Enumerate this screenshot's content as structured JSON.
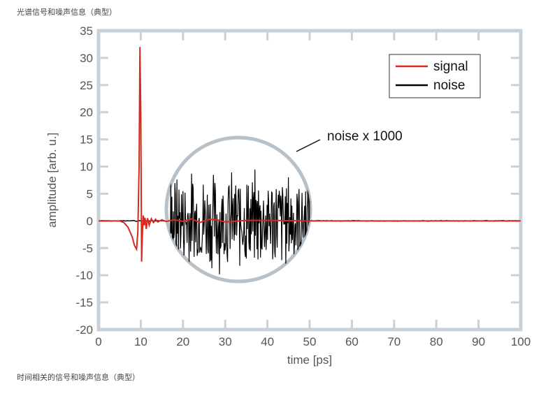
{
  "captions": {
    "top": "光谱信号和噪声信息（典型）",
    "bottom": "时间相关的信号和噪声信息（典型）"
  },
  "chart_data": {
    "type": "line",
    "xlabel": "time [ps]",
    "ylabel": "amplitude [arb. u.]",
    "xlim": [
      0,
      100
    ],
    "ylim": [
      -20,
      35
    ],
    "xticks": [
      0,
      10,
      20,
      30,
      40,
      50,
      60,
      70,
      80,
      90,
      100
    ],
    "yticks": [
      35,
      30,
      25,
      20,
      15,
      10,
      5,
      0,
      -5,
      -10,
      -15,
      -20
    ],
    "legend": {
      "position": "top-right",
      "entries": [
        {
          "label": "signal",
          "color": "#d42a20"
        },
        {
          "label": "noise",
          "color": "#000000"
        }
      ]
    },
    "annotation": {
      "text": "noise x 1000",
      "inset_x_range": [
        17,
        50
      ],
      "inset_y_range": [
        -12,
        12
      ]
    },
    "series": [
      {
        "name": "signal",
        "color": "#d42a20",
        "x": [
          0,
          5,
          6,
          7,
          8,
          8.5,
          9,
          9.3,
          9.6,
          9.8,
          10.0,
          10.2,
          10.4,
          10.6,
          10.8,
          11.0,
          11.3,
          11.6,
          12.0,
          12.5,
          13.0,
          13.5,
          14.0,
          15.0,
          16.0,
          18.0,
          20.0,
          22,
          24,
          26,
          28,
          30,
          35,
          40,
          50,
          60,
          70,
          80,
          90,
          100
        ],
        "y": [
          0,
          0,
          -0.3,
          -1.2,
          -3.0,
          -4.5,
          -5.2,
          -2.0,
          10.0,
          32.0,
          20.0,
          -7.5,
          -2.0,
          1.0,
          -0.8,
          0.6,
          -1.5,
          0.5,
          -0.8,
          0.4,
          -0.3,
          0.3,
          -0.2,
          0.2,
          -0.1,
          0.2,
          -0.1,
          0.4,
          -0.3,
          0.3,
          0.2,
          -0.2,
          0.1,
          0.1,
          0,
          0,
          0,
          0,
          0,
          0
        ]
      },
      {
        "name": "noise",
        "color": "#000000",
        "description": "baseline noise, magnified x1000 inside inset",
        "amplitude": 10
      }
    ]
  }
}
